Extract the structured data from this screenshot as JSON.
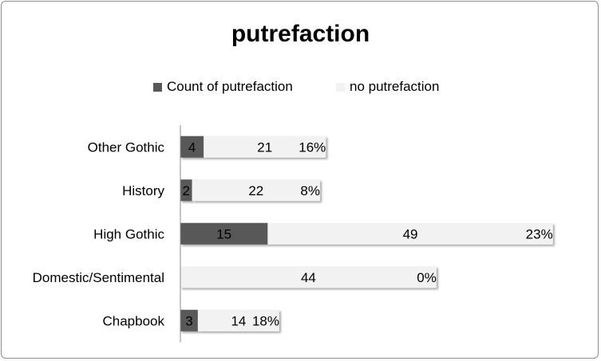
{
  "chart_data": {
    "type": "bar",
    "orientation": "horizontal",
    "stacked": true,
    "title": "putrefaction",
    "categories": [
      "Other Gothic",
      "History",
      "High Gothic",
      "Domestic/Sentimental",
      "Chapbook"
    ],
    "series": [
      {
        "name": "Count of putrefaction",
        "values": [
          4,
          2,
          15,
          0,
          3
        ],
        "color": "#595959"
      },
      {
        "name": "no putrefaction",
        "values": [
          21,
          22,
          49,
          44,
          14
        ],
        "color": "#f2f2f2"
      }
    ],
    "percent_labels": [
      "16%",
      "8%",
      "23%",
      "0%",
      "18%"
    ],
    "xlim": [
      0,
      65
    ],
    "legend_position": "top",
    "grid": false,
    "xaxis_visible": false
  }
}
